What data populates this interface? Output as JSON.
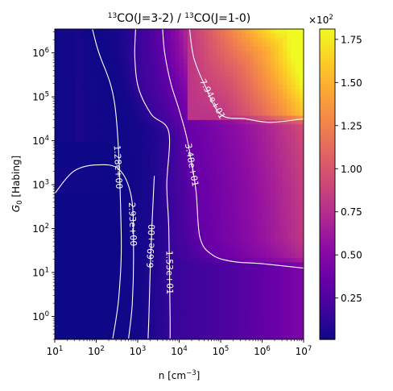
{
  "chart_data": {
    "type": "heatmap",
    "title_parts": {
      "sup1": "13",
      "text1": "CO(J=3-2) / ",
      "sup2": "13",
      "text2": "CO(J=1-0)"
    },
    "xlabel_parts": {
      "text": "n [cm",
      "sup": "−3",
      "close": "]"
    },
    "ylabel_parts": {
      "g": "G",
      "sub": "0",
      "rest": " [Habing]"
    },
    "x_scale": "log",
    "y_scale": "log",
    "xlim": [
      10,
      10000000
    ],
    "ylim": [
      0.3,
      3500000
    ],
    "x_ticks": [
      {
        "value": 10,
        "base": "10",
        "exp": "1"
      },
      {
        "value": 100,
        "base": "10",
        "exp": "2"
      },
      {
        "value": 1000,
        "base": "10",
        "exp": "3"
      },
      {
        "value": 10000,
        "base": "10",
        "exp": "4"
      },
      {
        "value": 100000,
        "base": "10",
        "exp": "5"
      },
      {
        "value": 1000000,
        "base": "10",
        "exp": "6"
      },
      {
        "value": 10000000,
        "base": "10",
        "exp": "7"
      }
    ],
    "y_ticks": [
      {
        "value": 1,
        "base": "10",
        "exp": "0"
      },
      {
        "value": 10,
        "base": "10",
        "exp": "1"
      },
      {
        "value": 100,
        "base": "10",
        "exp": "2"
      },
      {
        "value": 1000,
        "base": "10",
        "exp": "3"
      },
      {
        "value": 10000,
        "base": "10",
        "exp": "4"
      },
      {
        "value": 100000,
        "base": "10",
        "exp": "5"
      },
      {
        "value": 1000000,
        "base": "10",
        "exp": "6"
      }
    ],
    "colormap": "plasma",
    "colorbar": {
      "vmin": 0.01,
      "vmax": 1.81,
      "ticks": [
        "0.25",
        "0.50",
        "0.75",
        "1.00",
        "1.25",
        "1.50",
        "1.75"
      ],
      "multiplier_base": "×10",
      "multiplier_exp": "2"
    },
    "contour_color": "#ffffff",
    "contours": [
      {
        "label": "1.28e+00",
        "value": 1.28,
        "points": [
          [
            1.55,
            8.0
          ],
          [
            2.0,
            6.2
          ],
          [
            2.45,
            4.8
          ],
          [
            2.6,
            2.0
          ],
          [
            2.55,
            0.5
          ],
          [
            2.4,
            -0.5
          ]
        ]
      },
      {
        "label": "2.93e+00",
        "value": 2.93,
        "points": [
          [
            1.0,
            2.8
          ],
          [
            1.45,
            3.3
          ],
          [
            2.0,
            3.45
          ],
          [
            2.55,
            3.35
          ],
          [
            2.85,
            2.7
          ],
          [
            2.9,
            1.5
          ],
          [
            2.87,
            0.3
          ],
          [
            2.78,
            -0.5
          ]
        ]
      },
      {
        "label": "6.69e+00",
        "value": 6.69,
        "points": [
          [
            3.4,
            3.2
          ],
          [
            3.35,
            2.2
          ],
          [
            3.3,
            1.0
          ],
          [
            3.27,
            0.0
          ],
          [
            3.25,
            -0.5
          ]
        ]
      },
      {
        "label": "1.53e+01",
        "value": 15.3,
        "points": [
          [
            2.95,
            6.55
          ],
          [
            2.93,
            5.9
          ],
          [
            3.02,
            5.2
          ],
          [
            3.33,
            4.6
          ],
          [
            3.75,
            4.2
          ],
          [
            3.7,
            3.0
          ],
          [
            3.75,
            2.0
          ],
          [
            3.78,
            0.0
          ],
          [
            3.78,
            -0.5
          ]
        ]
      },
      {
        "label": "3.48e+01",
        "value": 34.8,
        "points": [
          [
            3.6,
            6.55
          ],
          [
            3.65,
            6.0
          ],
          [
            3.8,
            5.3
          ],
          [
            4.0,
            4.7
          ],
          [
            4.2,
            4.0
          ],
          [
            4.4,
            2.9
          ],
          [
            4.5,
            1.8
          ],
          [
            4.8,
            1.4
          ],
          [
            5.3,
            1.25
          ],
          [
            6.0,
            1.2
          ],
          [
            7.0,
            1.1
          ]
        ]
      },
      {
        "label": "7.94e+01",
        "value": 79.4,
        "points": [
          [
            4.25,
            6.55
          ],
          [
            4.35,
            5.9
          ],
          [
            4.6,
            5.3
          ],
          [
            5.0,
            4.6
          ],
          [
            5.6,
            4.5
          ],
          [
            6.2,
            4.42
          ],
          [
            7.0,
            4.5
          ]
        ]
      }
    ]
  }
}
